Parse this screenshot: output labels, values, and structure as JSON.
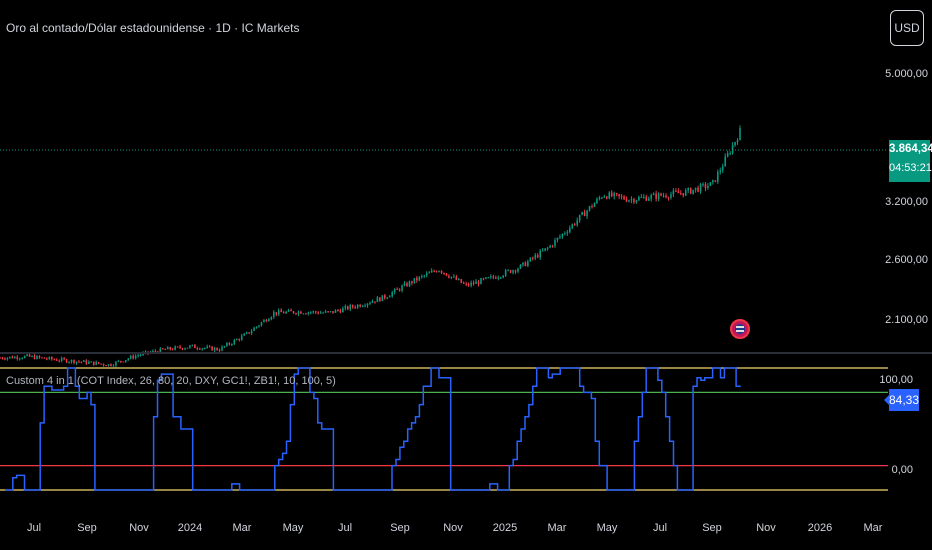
{
  "header": {
    "symbol_title": "Oro al contado/Dólar estadounidense · 1D · IC Markets",
    "currency_button": "USD"
  },
  "price_pane": {
    "y_ticks": [
      "5.000,00",
      "3.200,00",
      "2.600,00",
      "2.100,00"
    ],
    "last_price": "3.864,34",
    "countdown": "04:53:21",
    "colors": {
      "up": "#089981",
      "down": "#f23645",
      "last_price_line": "#089981"
    }
  },
  "indicator_pane": {
    "title": "Custom 4 in 1 (COT Index, 26, 80, 20, DXY, GC1!, ZB1!, 10, 100, 5)",
    "y_ticks": [
      "100,00",
      "0,00"
    ],
    "last_value": "84,33",
    "colors": {
      "line": "#2962ff",
      "bounds": "#f5d76e",
      "upper": "#4caf50",
      "lower": "#f23645"
    }
  },
  "x_axis": {
    "labels": [
      "Jul",
      "Sep",
      "Nov",
      "2024",
      "Mar",
      "May",
      "Jul",
      "Sep",
      "Nov",
      "2025",
      "Mar",
      "May",
      "Jul",
      "Sep",
      "Nov",
      "2026",
      "Mar"
    ]
  },
  "icons": {
    "event_marker": "flag-badge-icon"
  },
  "chart_data": [
    {
      "type": "line",
      "title": "Oro al contado/Dólar estadounidense · 1D · IC Markets",
      "x": [
        "2023-06",
        "2023-07",
        "2023-08",
        "2023-09",
        "2023-10",
        "2023-11",
        "2023-12",
        "2024-01",
        "2024-02",
        "2024-03",
        "2024-04",
        "2024-05",
        "2024-06",
        "2024-07",
        "2024-08",
        "2024-09",
        "2024-10",
        "2024-11",
        "2024-12",
        "2025-01",
        "2025-02",
        "2025-03",
        "2025-04",
        "2025-05",
        "2025-06",
        "2025-07",
        "2025-08",
        "2025-09"
      ],
      "series": [
        {
          "values": [
            1950,
            1960,
            1935,
            1915,
            1890,
            1970,
            2020,
            2045,
            2020,
            2150,
            2330,
            2340,
            2330,
            2390,
            2460,
            2590,
            2700,
            2560,
            2630,
            2720,
            2880,
            3100,
            3330,
            3290,
            3320,
            3350,
            3420,
            3864.34
          ]
        }
      ],
      "ylim": [
        1900,
        5300
      ],
      "y_scale": "log"
    },
    {
      "type": "line",
      "title": "Custom 4 in 1 (COT Index, 26, 80, 20, DXY, GC1!, ZB1!, 10, 100, 5)",
      "x_start": "2023-06",
      "x_end": "2025-09",
      "series": [
        {
          "values": [
            0,
            0,
            10,
            12,
            12,
            0,
            0,
            0,
            0,
            55,
            85,
            85,
            82,
            82,
            82,
            85,
            100,
            100,
            85,
            75,
            75,
            80,
            70,
            0,
            0,
            0,
            0,
            0,
            0,
            0,
            0,
            0,
            0,
            0,
            0,
            0,
            0,
            0,
            60,
            90,
            95,
            95,
            95,
            60,
            60,
            50,
            50,
            50,
            0,
            0,
            0,
            0,
            0,
            0,
            0,
            0,
            0,
            0,
            5,
            5,
            0,
            0,
            0,
            0,
            0,
            0,
            0,
            0,
            0,
            20,
            25,
            30,
            40,
            70,
            95,
            100,
            100,
            100,
            80,
            75,
            55,
            50,
            50,
            50,
            0,
            0,
            0,
            0,
            0,
            0,
            0,
            0,
            0,
            0,
            0,
            0,
            0,
            0,
            0,
            20,
            25,
            35,
            40,
            50,
            55,
            60,
            70,
            85,
            85,
            100,
            100,
            92,
            92,
            92,
            0,
            0,
            0,
            0,
            0,
            0,
            0,
            0,
            0,
            0,
            5,
            5,
            0,
            0,
            0,
            20,
            25,
            40,
            50,
            60,
            70,
            85,
            100,
            100,
            100,
            92,
            95,
            95,
            100,
            100,
            100,
            100,
            100,
            85,
            80,
            80,
            75,
            40,
            20,
            20,
            0,
            0,
            0,
            0,
            0,
            0,
            0,
            40,
            60,
            80,
            100,
            100,
            100,
            90,
            80,
            60,
            40,
            20,
            0,
            0,
            0,
            0,
            85,
            92,
            90,
            92,
            92,
            100,
            100,
            92,
            100,
            100,
            100,
            85,
            84.33
          ]
        }
      ],
      "reference_lines": [
        100,
        80,
        20,
        0
      ],
      "ylim": [
        -8,
        108
      ]
    }
  ]
}
